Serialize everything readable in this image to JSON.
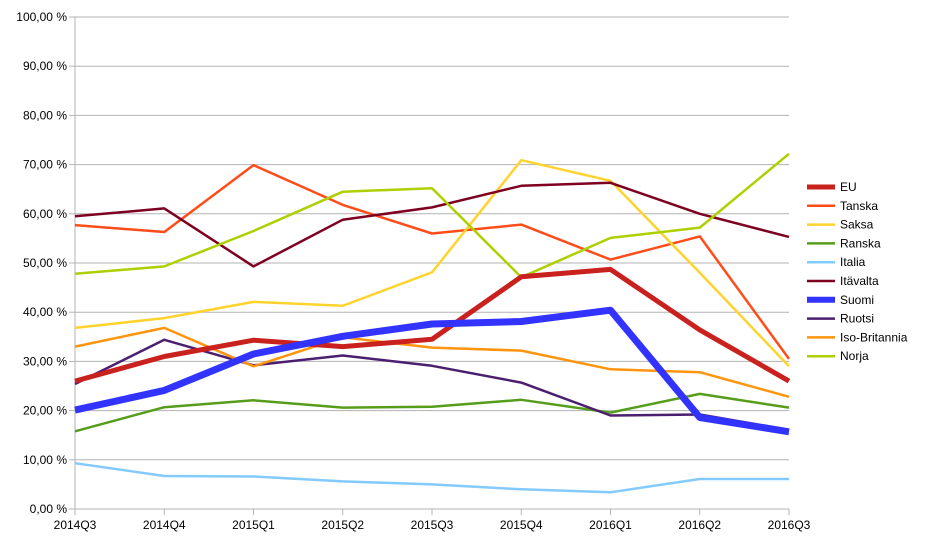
{
  "chart_data": {
    "type": "line",
    "title": "",
    "xlabel": "",
    "ylabel": "",
    "categories": [
      "2014Q3",
      "2014Q4",
      "2015Q1",
      "2015Q2",
      "2015Q3",
      "2015Q4",
      "2016Q1",
      "2016Q2",
      "2016Q3"
    ],
    "y_ticks": [
      "0,00 %",
      "10,00 %",
      "20,00 %",
      "30,00 %",
      "40,00 %",
      "50,00 %",
      "60,00 %",
      "70,00 %",
      "80,00 %",
      "90,00 %",
      "100,00 %"
    ],
    "ylim": [
      0,
      100
    ],
    "grid": true,
    "legend_position": "right",
    "series": [
      {
        "name": "EU",
        "color": "#c9211e",
        "width": 5,
        "values": [
          26.0,
          31.0,
          34.3,
          33.0,
          34.5,
          47.2,
          48.7,
          36.4,
          26.0
        ]
      },
      {
        "name": "Tanska",
        "color": "#ff4d1a",
        "width": 2.5,
        "values": [
          57.7,
          56.3,
          69.9,
          61.8,
          56.0,
          57.8,
          50.7,
          55.4,
          30.5
        ]
      },
      {
        "name": "Saksa",
        "color": "#ffd32e",
        "width": 2.5,
        "values": [
          36.8,
          38.8,
          42.1,
          41.3,
          48.1,
          70.9,
          66.7,
          48.0,
          29.0
        ]
      },
      {
        "name": "Ranska",
        "color": "#579d1c",
        "width": 2.5,
        "values": [
          15.8,
          20.7,
          22.1,
          20.6,
          20.8,
          22.2,
          19.6,
          23.4,
          20.6
        ]
      },
      {
        "name": "Italia",
        "color": "#83caff",
        "width": 2.5,
        "values": [
          9.3,
          6.7,
          6.6,
          5.6,
          5.0,
          4.0,
          3.4,
          6.1,
          6.1
        ]
      },
      {
        "name": "Itävalta",
        "color": "#7e0021",
        "width": 2.5,
        "values": [
          59.5,
          61.1,
          49.3,
          58.8,
          61.3,
          65.7,
          66.3,
          60.0,
          55.3
        ]
      },
      {
        "name": "Suomi",
        "color": "#3333ff",
        "width": 7,
        "values": [
          20.1,
          24.1,
          31.5,
          35.1,
          37.6,
          38.1,
          40.4,
          18.6,
          15.7
        ]
      },
      {
        "name": "Ruotsi",
        "color": "#4b1f6f",
        "width": 2.5,
        "values": [
          25.4,
          34.4,
          29.2,
          31.2,
          29.1,
          25.7,
          19.0,
          19.2,
          16.1
        ]
      },
      {
        "name": "Iso-Britannia",
        "color": "#ff950e",
        "width": 2.5,
        "values": [
          33.0,
          36.8,
          29.0,
          34.9,
          32.8,
          32.2,
          28.4,
          27.8,
          22.8
        ]
      },
      {
        "name": "Norja",
        "color": "#aecf00",
        "width": 2.5,
        "values": [
          47.8,
          49.3,
          56.5,
          64.5,
          65.2,
          47.1,
          55.1,
          57.2,
          72.2
        ]
      }
    ]
  }
}
